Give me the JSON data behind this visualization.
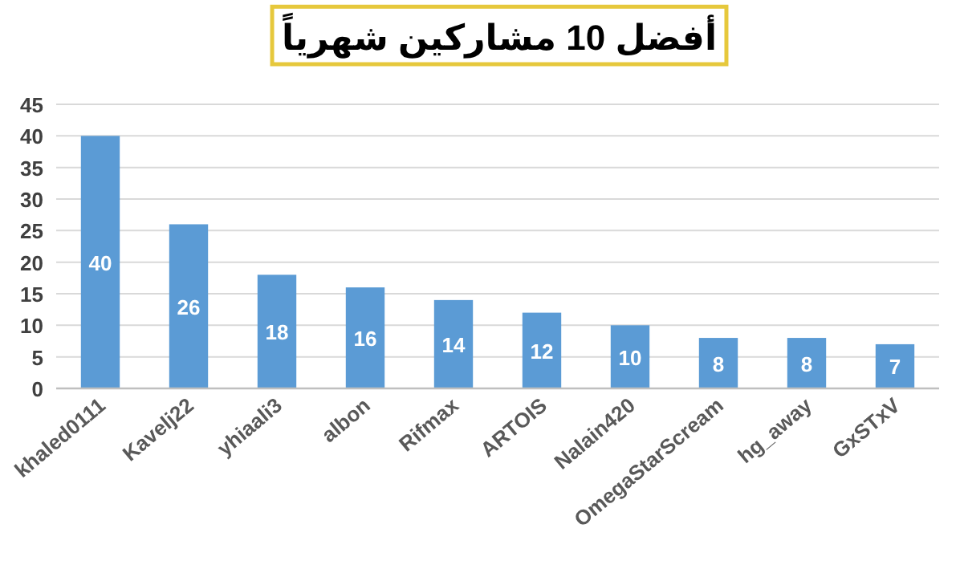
{
  "chart_data": {
    "type": "bar",
    "title": "أفضل 10 مشاركين شهرياً",
    "categories": [
      "khaled0111",
      "Kavelj22",
      "yhiaali3",
      "albon",
      "Rifmax",
      "ARTOIS",
      "Nalain420",
      "OmegaStarScream",
      "hg_away",
      "GxSTxV"
    ],
    "values": [
      40,
      26,
      18,
      16,
      14,
      12,
      10,
      8,
      8,
      7
    ],
    "color": "#5b9bd5",
    "ylim": [
      0,
      45
    ],
    "yticks": [
      0,
      5,
      10,
      15,
      20,
      25,
      30,
      35,
      40,
      45
    ],
    "grid": "y",
    "data_labels": true
  }
}
